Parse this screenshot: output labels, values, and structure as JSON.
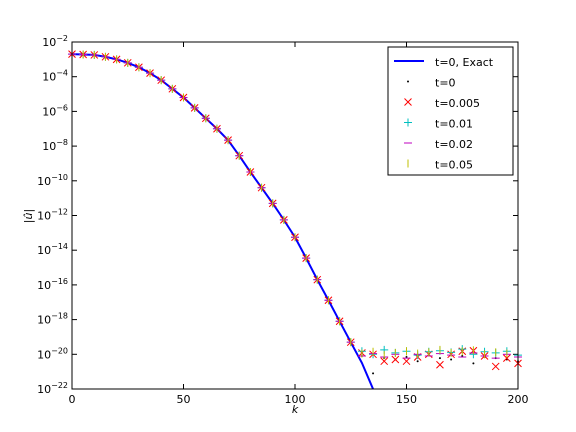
{
  "chart_data": {
    "type": "line",
    "xlabel": "k",
    "ylabel": "|û|",
    "x": [
      0,
      5,
      10,
      15,
      20,
      25,
      30,
      35,
      40,
      45,
      50,
      55,
      60,
      65,
      70,
      75,
      80,
      85,
      90,
      95,
      100,
      105,
      110,
      115,
      120,
      125,
      130,
      135,
      140,
      145,
      150,
      155,
      160,
      165,
      170,
      175,
      180,
      185,
      190,
      195,
      200
    ],
    "xlim": [
      0,
      200
    ],
    "xticks": [
      0,
      50,
      100,
      150,
      200
    ],
    "ylim": [
      1e-22,
      0.01
    ],
    "log_y": true,
    "yticks": [
      {
        "value": 0.01,
        "label": "10−2"
      },
      {
        "value": 0.0001,
        "label": "10−4"
      },
      {
        "value": 1e-06,
        "label": "10−6"
      },
      {
        "value": 1e-08,
        "label": "10−8"
      },
      {
        "value": 1e-10,
        "label": "10−10"
      },
      {
        "value": 1e-12,
        "label": "10−12"
      },
      {
        "value": 1e-14,
        "label": "10−14"
      },
      {
        "value": 1e-16,
        "label": "10−16"
      },
      {
        "value": 1e-18,
        "label": "10−18"
      },
      {
        "value": 1e-20,
        "label": "10−20"
      },
      {
        "value": 1e-22,
        "label": "10−22"
      }
    ],
    "legend": "upper right",
    "series": [
      {
        "name": "t=0, Exact",
        "color": "#0000ff",
        "marker": "line",
        "x": [
          0,
          5,
          10,
          15,
          20,
          25,
          30,
          35,
          40,
          45,
          50,
          55,
          60,
          65,
          70,
          75,
          80,
          85,
          90,
          95,
          100,
          105,
          110,
          115,
          120,
          125,
          130,
          135
        ],
        "values": [
          0.002,
          0.0019,
          0.0018,
          0.0014,
          0.001,
          0.00063,
          0.00035,
          0.00016,
          6.3e-05,
          2e-05,
          6.3e-06,
          1.6e-06,
          4e-07,
          1e-07,
          2.2e-08,
          2.8e-09,
          3.2e-10,
          4e-11,
          5e-12,
          5.6e-13,
          5.6e-14,
          3.5e-15,
          2e-16,
          1.3e-17,
          8e-19,
          5e-20,
          3.2e-21,
          1e-22
        ]
      },
      {
        "name": "t=0",
        "color": "#000000",
        "marker": "dot",
        "values": [
          0.002,
          0.0019,
          0.0018,
          0.0014,
          0.001,
          0.00063,
          0.00035,
          0.00016,
          6.3e-05,
          2e-05,
          6.3e-06,
          1.6e-06,
          4e-07,
          1e-07,
          2.2e-08,
          2.8e-09,
          3.2e-10,
          4e-11,
          5e-12,
          5.6e-13,
          5.6e-14,
          3.5e-15,
          2e-16,
          1.3e-17,
          8e-19,
          5e-20,
          8e-21,
          8e-22,
          6e-21,
          5e-21,
          7e-21,
          4e-21,
          9e-21,
          6e-21,
          5e-21,
          8e-21,
          3e-21,
          7e-21,
          6e-21,
          5e-21,
          4e-21
        ]
      },
      {
        "name": "t=0.005",
        "color": "#ff0000",
        "marker": "x",
        "values": [
          0.002,
          0.0019,
          0.0018,
          0.0014,
          0.001,
          0.00063,
          0.00035,
          0.00016,
          6.3e-05,
          2e-05,
          6.3e-06,
          1.6e-06,
          4e-07,
          1e-07,
          2.2e-08,
          2.8e-09,
          3.2e-10,
          4e-11,
          5e-12,
          5.6e-13,
          5.6e-14,
          3.5e-15,
          2e-16,
          1.3e-17,
          8e-19,
          5e-20,
          1.2e-20,
          1e-20,
          4e-21,
          5e-21,
          4e-21,
          7e-21,
          1e-20,
          2.5e-21,
          1e-20,
          1.5e-20,
          1.6e-20,
          8e-21,
          2e-21,
          6e-21,
          3e-21
        ]
      },
      {
        "name": "t=0.01",
        "color": "#00bfbf",
        "marker": "plus",
        "values": [
          0.002,
          0.0019,
          0.0018,
          0.0014,
          0.001,
          0.00063,
          0.00035,
          0.00016,
          6.3e-05,
          2e-05,
          6.3e-06,
          1.6e-06,
          4e-07,
          1e-07,
          2.2e-08,
          2.8e-09,
          3.2e-10,
          4e-11,
          5e-12,
          5.6e-13,
          5.6e-14,
          3.5e-15,
          2e-16,
          1.3e-17,
          8e-19,
          5e-20,
          1.5e-20,
          1e-20,
          1.8e-20,
          1.2e-20,
          1.5e-20,
          9e-21,
          1.4e-20,
          1.6e-20,
          1.3e-20,
          2e-20,
          1e-20,
          1.4e-20,
          1.2e-20,
          1.5e-20,
          9e-21
        ]
      },
      {
        "name": "t=0.02",
        "color": "#bf00bf",
        "marker": "hline",
        "values": [
          0.002,
          0.0019,
          0.0018,
          0.0014,
          0.001,
          0.00063,
          0.00035,
          0.00016,
          6.3e-05,
          2e-05,
          6.3e-06,
          1.6e-06,
          4e-07,
          1e-07,
          2.2e-08,
          2.8e-09,
          3.2e-10,
          4e-11,
          5e-12,
          5.6e-13,
          5.6e-14,
          3.5e-15,
          2e-16,
          1.3e-17,
          8e-19,
          5e-20,
          8e-21,
          1.1e-20,
          7e-21,
          1e-20,
          6e-21,
          1e-20,
          8e-21,
          1.1e-20,
          9e-21,
          7e-21,
          1.2e-20,
          8e-21,
          6e-21,
          1e-20,
          7e-21
        ]
      },
      {
        "name": "t=0.05",
        "color": "#bfbf00",
        "marker": "vline",
        "values": [
          0.002,
          0.0019,
          0.0018,
          0.0014,
          0.001,
          0.00063,
          0.00035,
          0.00016,
          6.3e-05,
          2e-05,
          6.3e-06,
          1.6e-06,
          4e-07,
          1e-07,
          2.2e-08,
          2.8e-09,
          3.2e-10,
          4e-11,
          5e-12,
          5.6e-13,
          5.6e-14,
          3.5e-15,
          2e-16,
          1.3e-17,
          8e-19,
          5e-20,
          1.1e-20,
          1.4e-20,
          9e-21,
          1.2e-20,
          1.5e-20,
          1.1e-20,
          1.3e-20,
          1.8e-20,
          1.2e-20,
          1.5e-20,
          1.7e-20,
          1e-20,
          1.3e-20,
          1.1e-20,
          1.2e-20
        ]
      }
    ]
  }
}
